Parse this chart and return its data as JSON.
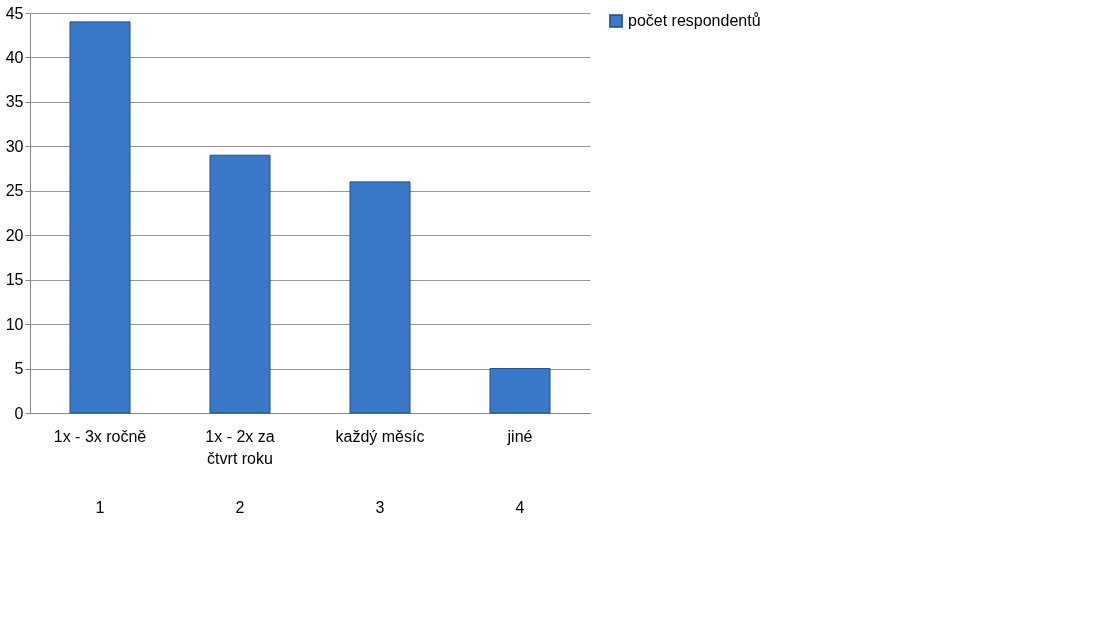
{
  "chart_data": {
    "type": "bar",
    "categories": [
      "1x - 3x ročně",
      "1x - 2x za čtvrt roku",
      "každý měsíc",
      "jiné"
    ],
    "series": [
      {
        "name": "počet respondentů",
        "color": "#3a78c8",
        "values": [
          44,
          29,
          26,
          5
        ]
      }
    ],
    "ylim": [
      0,
      45
    ],
    "yticks": [
      0,
      5,
      10,
      15,
      20,
      25,
      30,
      35,
      40,
      45
    ],
    "grid": "y",
    "legend": "right",
    "annotations": [
      "1",
      "2",
      "3",
      "4"
    ]
  }
}
